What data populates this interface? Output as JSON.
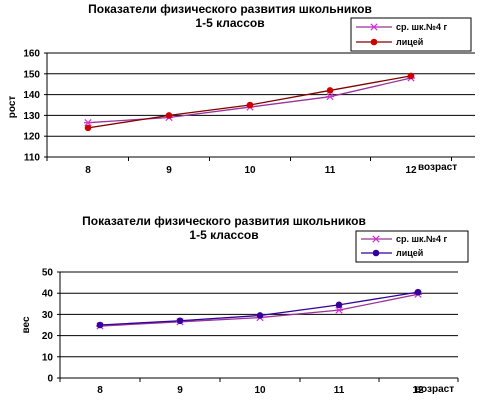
{
  "chart_data": [
    {
      "type": "line",
      "title": "Показатели физического развития школьников",
      "subtitle": "1-5 классов",
      "xlabel": "возраст",
      "ylabel": "рост",
      "categories": [
        "8",
        "9",
        "10",
        "11",
        "12"
      ],
      "ylim": [
        110,
        160
      ],
      "yticks": [
        110,
        120,
        130,
        140,
        150,
        160
      ],
      "grid": true,
      "legend_position": "top-right",
      "series": [
        {
          "name": "ср. шк.№4 г",
          "values": [
            126.5,
            129,
            134,
            139,
            148
          ],
          "color": "#cc33cc",
          "line_color": "#993399",
          "marker": "asterisk"
        },
        {
          "name": "лицей",
          "values": [
            124,
            130,
            135,
            142,
            149
          ],
          "color": "#cc0000",
          "line_color": "#800000",
          "marker": "circle"
        }
      ]
    },
    {
      "type": "line",
      "title": "Показатели физического развития школьников",
      "subtitle": "1-5 классов",
      "xlabel": "возраст",
      "ylabel": "вес",
      "categories": [
        "8",
        "9",
        "10",
        "11",
        "12"
      ],
      "ylim": [
        0,
        50
      ],
      "yticks": [
        0,
        10,
        20,
        30,
        40,
        50
      ],
      "grid": true,
      "legend_position": "top-right",
      "series": [
        {
          "name": "ср. шк.№4 г",
          "values": [
            24.5,
            26.5,
            28.5,
            32,
            39.5
          ],
          "color": "#cc33cc",
          "line_color": "#993399",
          "marker": "asterisk"
        },
        {
          "name": "лицей",
          "values": [
            25,
            27,
            29.5,
            34.5,
            40.5
          ],
          "color": "#330099",
          "line_color": "#330099",
          "marker": "circle"
        }
      ]
    }
  ]
}
